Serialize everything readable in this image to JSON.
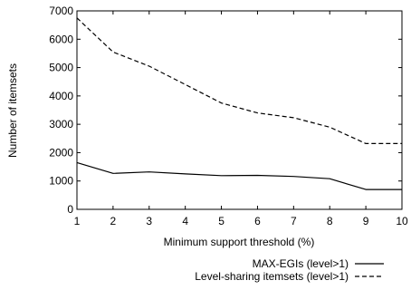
{
  "chart_data": {
    "type": "line",
    "title": "",
    "xlabel": "Minimum support threshold (%)",
    "ylabel": "Number of itemsets",
    "xlim": [
      1,
      10
    ],
    "ylim": [
      0,
      7000
    ],
    "x_ticks": [
      1,
      2,
      3,
      4,
      5,
      6,
      7,
      8,
      9,
      10
    ],
    "y_ticks": [
      0,
      1000,
      2000,
      3000,
      4000,
      5000,
      6000,
      7000
    ],
    "grid": false,
    "legend_position": "below-right",
    "series": [
      {
        "name": "MAX-EGIs (level>1)",
        "line_style": "solid",
        "color": "#000000",
        "x": [
          1,
          2,
          3,
          4,
          5,
          6,
          7,
          8,
          9,
          10
        ],
        "y": [
          1650,
          1270,
          1320,
          1250,
          1190,
          1200,
          1160,
          1080,
          700,
          700
        ]
      },
      {
        "name": "Level-sharing itemsets (level>1)",
        "line_style": "dashed",
        "color": "#000000",
        "x": [
          1,
          2,
          3,
          4,
          5,
          6,
          7,
          8,
          9,
          10
        ],
        "y": [
          6750,
          5550,
          5050,
          4400,
          3750,
          3400,
          3230,
          2900,
          2320,
          2320
        ]
      }
    ]
  }
}
